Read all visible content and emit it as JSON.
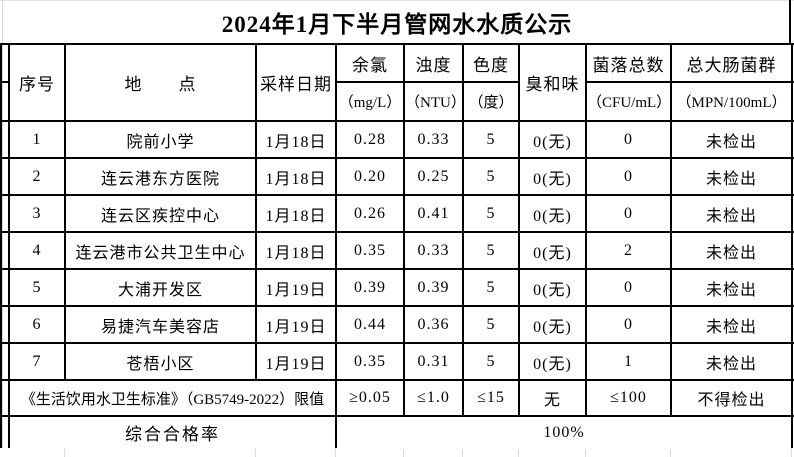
{
  "title": "2024年1月下半月管网水水质公示",
  "table": {
    "columns": [
      {
        "label": "序号",
        "unit": ""
      },
      {
        "label": "地　　点",
        "unit": ""
      },
      {
        "label": "采样日期",
        "unit": ""
      },
      {
        "label": "余氯",
        "unit": "（mg/L）"
      },
      {
        "label": "浊度",
        "unit": "（NTU）"
      },
      {
        "label": "色度",
        "unit": "（度）"
      },
      {
        "label": "臭和味",
        "unit": ""
      },
      {
        "label": "菌落总数",
        "unit": "（CFU/mL）"
      },
      {
        "label": "总大肠菌群",
        "unit": "（MPN/100mL）"
      }
    ],
    "rows": [
      [
        "1",
        "院前小学",
        "1月18日",
        "0.28",
        "0.33",
        "5",
        "0(无)",
        "0",
        "未检出"
      ],
      [
        "2",
        "连云港东方医院",
        "1月18日",
        "0.20",
        "0.25",
        "5",
        "0(无)",
        "0",
        "未检出"
      ],
      [
        "3",
        "连云区疾控中心",
        "1月18日",
        "0.26",
        "0.41",
        "5",
        "0(无)",
        "0",
        "未检出"
      ],
      [
        "4",
        "连云港市公共卫生中心",
        "1月18日",
        "0.35",
        "0.33",
        "5",
        "0(无)",
        "2",
        "未检出"
      ],
      [
        "5",
        "大浦开发区",
        "1月19日",
        "0.39",
        "0.39",
        "5",
        "0(无)",
        "0",
        "未检出"
      ],
      [
        "6",
        "易捷汽车美容店",
        "1月19日",
        "0.44",
        "0.36",
        "5",
        "0(无)",
        "0",
        "未检出"
      ],
      [
        "7",
        "苍梧小区",
        "1月19日",
        "0.35",
        "0.31",
        "5",
        "0(无)",
        "1",
        "未检出"
      ]
    ],
    "limit_row": {
      "label": "《生活饮用水卫生标准》（GB5749-2022）限值",
      "values": [
        "≥0.05",
        "≤1.0",
        "≤15",
        "无",
        "≤100",
        "不得检出"
      ]
    },
    "rate_row": {
      "label": "综合合格率",
      "value": "100%"
    }
  },
  "colors": {
    "border": "#000000",
    "gridline": "#d8d8d8",
    "background": "#ffffff",
    "text": "#000000"
  }
}
